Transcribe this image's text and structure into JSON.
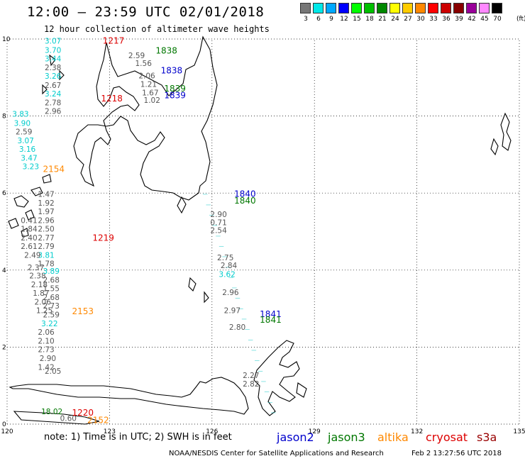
{
  "header": {
    "title": "12:00 – 23:59 UTC 02/01/2018",
    "subtitle": "12 hour collection of altimeter wave heights"
  },
  "legend": {
    "unit": "(ft)",
    "bins": [
      {
        "label": "3",
        "color": "#777777"
      },
      {
        "label": "6",
        "color": "#00e8e8"
      },
      {
        "label": "9",
        "color": "#00a8ff"
      },
      {
        "label": "12",
        "color": "#0000ff"
      },
      {
        "label": "15",
        "color": "#00ff00"
      },
      {
        "label": "18",
        "color": "#00c000"
      },
      {
        "label": "21",
        "color": "#008800"
      },
      {
        "label": "24",
        "color": "#ffff00"
      },
      {
        "label": "27",
        "color": "#ffcc00"
      },
      {
        "label": "30",
        "color": "#ff8800"
      },
      {
        "label": "33",
        "color": "#ff0000"
      },
      {
        "label": "36",
        "color": "#cc0000"
      },
      {
        "label": "39",
        "color": "#880000"
      },
      {
        "label": "42",
        "color": "#990099"
      },
      {
        "label": "45",
        "color": "#ff88ff"
      },
      {
        "label": "70",
        "color": "#000000"
      }
    ]
  },
  "map": {
    "lon_range": [
      120,
      135
    ],
    "lat_range": [
      0,
      10
    ],
    "lon_ticks": [
      "120",
      "123",
      "126",
      "129",
      "132",
      "135"
    ],
    "lat_ticks": [
      "0",
      "2",
      "4",
      "6",
      "8",
      "10"
    ],
    "grid": "dotted"
  },
  "pass_labels": [
    {
      "text": "1217",
      "color": "#dd0000",
      "lon": 122.8,
      "lat": 9.88
    },
    {
      "text": "1838",
      "color": "#007700",
      "lon": 124.35,
      "lat": 9.62
    },
    {
      "text": "1838",
      "color": "#0000cc",
      "lon": 124.5,
      "lat": 9.11
    },
    {
      "text": "1839",
      "color": "#007700",
      "lon": 124.6,
      "lat": 8.64
    },
    {
      "text": "1839",
      "color": "#0000cc",
      "lon": 124.6,
      "lat": 8.46
    },
    {
      "text": "1218",
      "color": "#dd0000",
      "lon": 122.75,
      "lat": 8.38
    },
    {
      "text": "2154",
      "color": "#ff8800",
      "lon": 121.05,
      "lat": 6.55
    },
    {
      "text": "1840",
      "color": "#0000cc",
      "lon": 126.65,
      "lat": 5.9
    },
    {
      "text": "1840",
      "color": "#007700",
      "lon": 126.65,
      "lat": 5.73
    },
    {
      "text": "1219",
      "color": "#dd0000",
      "lon": 122.5,
      "lat": 4.76
    },
    {
      "text": "2153",
      "color": "#ff8800",
      "lon": 121.9,
      "lat": 2.85
    },
    {
      "text": "1841",
      "color": "#0000cc",
      "lon": 127.4,
      "lat": 2.78
    },
    {
      "text": "1841",
      "color": "#007700",
      "lon": 127.4,
      "lat": 2.63
    },
    {
      "text": "1220",
      "color": "#dd0000",
      "lon": 121.9,
      "lat": 0.22
    },
    {
      "text": "2152",
      "color": "#ff8800",
      "lon": 122.35,
      "lat": 0.03
    }
  ],
  "swh_values": [
    {
      "text": "3.07",
      "color": "#00cccc",
      "lon": 121.1,
      "lat": 9.88
    },
    {
      "text": "3.70",
      "color": "#00cccc",
      "lon": 121.1,
      "lat": 9.64
    },
    {
      "text": "3.44",
      "color": "#00cccc",
      "lon": 121.1,
      "lat": 9.42
    },
    {
      "text": "2.38",
      "color": "#555555",
      "lon": 121.1,
      "lat": 9.19
    },
    {
      "text": "3.26",
      "color": "#00cccc",
      "lon": 121.1,
      "lat": 8.97
    },
    {
      "text": "2.67",
      "color": "#555555",
      "lon": 121.1,
      "lat": 8.73
    },
    {
      "text": "3.24",
      "color": "#00cccc",
      "lon": 121.1,
      "lat": 8.51
    },
    {
      "text": "2.78",
      "color": "#555555",
      "lon": 121.1,
      "lat": 8.28
    },
    {
      "text": "2.96",
      "color": "#555555",
      "lon": 121.1,
      "lat": 8.06
    },
    {
      "text": "2.59",
      "color": "#555555",
      "lon": 123.55,
      "lat": 9.5
    },
    {
      "text": "1.56",
      "color": "#555555",
      "lon": 123.75,
      "lat": 9.3
    },
    {
      "text": "2.06",
      "color": "#555555",
      "lon": 123.85,
      "lat": 8.98
    },
    {
      "text": "1.21",
      "color": "#555555",
      "lon": 123.9,
      "lat": 8.76
    },
    {
      "text": "1.67",
      "color": "#555555",
      "lon": 123.95,
      "lat": 8.54
    },
    {
      "text": "1.02",
      "color": "#555555",
      "lon": 124.0,
      "lat": 8.34
    },
    {
      "text": "3.83",
      "color": "#00cccc",
      "lon": 120.15,
      "lat": 7.98
    },
    {
      "text": "3.90",
      "color": "#00cccc",
      "lon": 120.2,
      "lat": 7.74
    },
    {
      "text": "2.59",
      "color": "#555555",
      "lon": 120.25,
      "lat": 7.52
    },
    {
      "text": "3.07",
      "color": "#00cccc",
      "lon": 120.3,
      "lat": 7.29
    },
    {
      "text": "3.16",
      "color": "#00cccc",
      "lon": 120.35,
      "lat": 7.07
    },
    {
      "text": "3.47",
      "color": "#00cccc",
      "lon": 120.4,
      "lat": 6.84
    },
    {
      "text": "3.23",
      "color": "#00cccc",
      "lon": 120.45,
      "lat": 6.62
    },
    {
      "text": "1.47",
      "color": "#555555",
      "lon": 120.9,
      "lat": 5.9
    },
    {
      "text": "1.92",
      "color": "#555555",
      "lon": 120.9,
      "lat": 5.67
    },
    {
      "text": "1.97",
      "color": "#555555",
      "lon": 120.9,
      "lat": 5.45
    },
    {
      "text": "2.96",
      "color": "#555555",
      "lon": 120.9,
      "lat": 5.22
    },
    {
      "text": "2.50",
      "color": "#555555",
      "lon": 120.9,
      "lat": 5.0
    },
    {
      "text": "2.77",
      "color": "#555555",
      "lon": 120.9,
      "lat": 4.77
    },
    {
      "text": "2.79",
      "color": "#555555",
      "lon": 120.9,
      "lat": 4.55
    },
    {
      "text": "3.81",
      "color": "#00cccc",
      "lon": 120.9,
      "lat": 4.32
    },
    {
      "text": "1.78",
      "color": "#555555",
      "lon": 120.9,
      "lat": 4.1
    },
    {
      "text": "0.41",
      "color": "#555555",
      "lon": 120.4,
      "lat": 5.22
    },
    {
      "text": "1.84",
      "color": "#555555",
      "lon": 120.4,
      "lat": 5.0
    },
    {
      "text": "2.40",
      "color": "#555555",
      "lon": 120.4,
      "lat": 4.77
    },
    {
      "text": "2.61",
      "color": "#555555",
      "lon": 120.4,
      "lat": 4.55
    },
    {
      "text": "2.49",
      "color": "#555555",
      "lon": 120.5,
      "lat": 4.32
    },
    {
      "text": "2.37",
      "color": "#555555",
      "lon": 120.6,
      "lat": 4.0
    },
    {
      "text": "2.38",
      "color": "#555555",
      "lon": 120.65,
      "lat": 3.78
    },
    {
      "text": "2.18",
      "color": "#555555",
      "lon": 120.7,
      "lat": 3.55
    },
    {
      "text": "1.87",
      "color": "#555555",
      "lon": 120.75,
      "lat": 3.33
    },
    {
      "text": "2.06",
      "color": "#555555",
      "lon": 120.8,
      "lat": 3.1
    },
    {
      "text": "1.25",
      "color": "#555555",
      "lon": 120.85,
      "lat": 2.88
    },
    {
      "text": "3.89",
      "color": "#00cccc",
      "lon": 121.05,
      "lat": 3.9
    },
    {
      "text": "2.68",
      "color": "#555555",
      "lon": 121.05,
      "lat": 3.67
    },
    {
      "text": "1.55",
      "color": "#555555",
      "lon": 121.05,
      "lat": 3.45
    },
    {
      "text": "2.68",
      "color": "#555555",
      "lon": 121.05,
      "lat": 3.22
    },
    {
      "text": "2.73",
      "color": "#555555",
      "lon": 121.05,
      "lat": 3.0
    },
    {
      "text": "2.59",
      "color": "#555555",
      "lon": 121.05,
      "lat": 2.77
    },
    {
      "text": "3.22",
      "color": "#00cccc",
      "lon": 121.0,
      "lat": 2.54
    },
    {
      "text": "2.06",
      "color": "#555555",
      "lon": 120.9,
      "lat": 2.32
    },
    {
      "text": "2.10",
      "color": "#555555",
      "lon": 120.9,
      "lat": 2.09
    },
    {
      "text": "2.73",
      "color": "#555555",
      "lon": 120.9,
      "lat": 1.87
    },
    {
      "text": "2.90",
      "color": "#555555",
      "lon": 120.95,
      "lat": 1.64
    },
    {
      "text": "1.42",
      "color": "#555555",
      "lon": 120.9,
      "lat": 1.41
    },
    {
      "text": "2.05",
      "color": "#555555",
      "lon": 121.1,
      "lat": 1.31
    },
    {
      "text": "18.02",
      "color": "#007700",
      "lon": 121.0,
      "lat": 0.26
    },
    {
      "text": "0.60",
      "color": "#555555",
      "lon": 121.55,
      "lat": 0.08
    },
    {
      "text": "2.90",
      "color": "#555555",
      "lon": 125.95,
      "lat": 5.38
    },
    {
      "text": "0.71",
      "color": "#555555",
      "lon": 125.95,
      "lat": 5.17
    },
    {
      "text": "2.54",
      "color": "#555555",
      "lon": 125.95,
      "lat": 4.96
    },
    {
      "text": "2.75",
      "color": "#555555",
      "lon": 126.15,
      "lat": 4.25
    },
    {
      "text": "2.84",
      "color": "#555555",
      "lon": 126.25,
      "lat": 4.05
    },
    {
      "text": "3.62",
      "color": "#00cccc",
      "lon": 126.2,
      "lat": 3.82
    },
    {
      "text": "2.96",
      "color": "#555555",
      "lon": 126.3,
      "lat": 3.35
    },
    {
      "text": "2.97",
      "color": "#555555",
      "lon": 126.35,
      "lat": 2.88
    },
    {
      "text": "2.80",
      "color": "#555555",
      "lon": 126.5,
      "lat": 2.45
    },
    {
      "text": "2.27",
      "color": "#555555",
      "lon": 126.9,
      "lat": 1.2
    },
    {
      "text": "2.82",
      "color": "#555555",
      "lon": 126.9,
      "lat": 0.98
    }
  ],
  "footer": {
    "note": "note:  1) Time is in UTC;  2) SWH is in feet",
    "satellites": [
      {
        "name": "jason2",
        "color": "#0000cc"
      },
      {
        "name": "jason3",
        "color": "#007700"
      },
      {
        "name": "altika",
        "color": "#ff8800"
      },
      {
        "name": "cryosat",
        "color": "#dd0000"
      },
      {
        "name": "s3a",
        "color": "#990000"
      }
    ],
    "credit": "NOAA/NESDIS Center for Satellite Applications and Research",
    "timestamp": "Feb  2 13:27:56 UTC 2018"
  }
}
